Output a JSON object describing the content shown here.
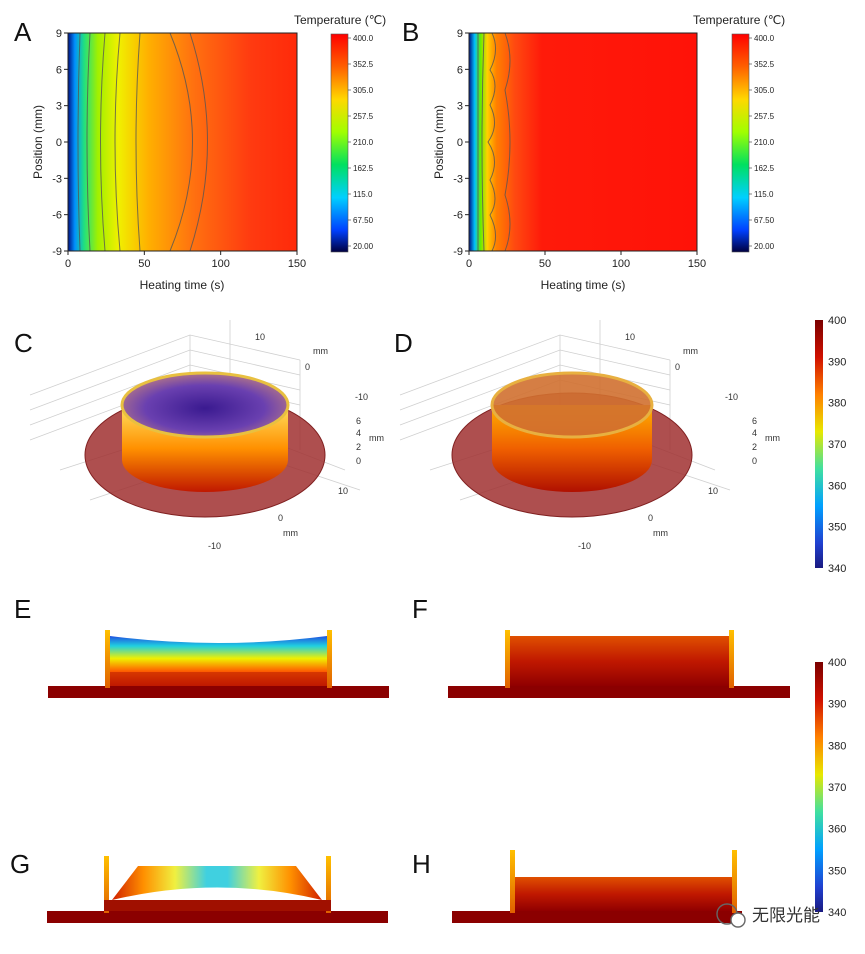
{
  "panels": {
    "A": "A",
    "B": "B",
    "C": "C",
    "D": "D",
    "E": "E",
    "F": "F",
    "G": "G",
    "H": "H"
  },
  "chart_data": [
    {
      "id": "A",
      "type": "heatmap",
      "xlabel": "Heating time (s)",
      "ylabel": "Position (mm)",
      "xlim": [
        0,
        150
      ],
      "ylim": [
        -9,
        9
      ],
      "xticks": [
        "0",
        "50",
        "100",
        "150"
      ],
      "yticks": [
        "9",
        "6",
        "3",
        "0",
        "-3",
        "-6",
        "-9"
      ],
      "colorbar": {
        "title": "Temperature (℃)",
        "ticks": [
          "400.0",
          "352.5",
          "305.0",
          "257.5",
          "210.0",
          "162.5",
          "115.0",
          "67.50",
          "20.00"
        ]
      }
    },
    {
      "id": "B",
      "type": "heatmap",
      "xlabel": "Heating time (s)",
      "ylabel": "Position (mm)",
      "xlim": [
        0,
        150
      ],
      "ylim": [
        -9,
        9
      ],
      "xticks": [
        "0",
        "50",
        "100",
        "150"
      ],
      "yticks": [
        "9",
        "6",
        "3",
        "0",
        "-3",
        "-6",
        "-9"
      ],
      "colorbar": {
        "title": "Temperature (℃)",
        "ticks": [
          "400.0",
          "352.5",
          "305.0",
          "257.5",
          "210.0",
          "162.5",
          "115.0",
          "67.50",
          "20.00"
        ]
      }
    }
  ],
  "views3d": {
    "axis_unit": "mm",
    "x_ticks": [
      "10",
      "0",
      "-10"
    ],
    "y_ticks": [
      "10",
      "0",
      "-10"
    ],
    "z_ticks": [
      "6",
      "4",
      "2",
      "0"
    ]
  },
  "scale_top": {
    "ticks": [
      "400",
      "390",
      "380",
      "370",
      "360",
      "350",
      "340"
    ]
  },
  "scale_bottom": {
    "ticks": [
      "400",
      "390",
      "380",
      "370",
      "360",
      "350",
      "340"
    ]
  },
  "watermark": "无限光能",
  "colors": {
    "hot": "#ff1a0a",
    "cold": "#000060",
    "base": "#8b0000"
  }
}
